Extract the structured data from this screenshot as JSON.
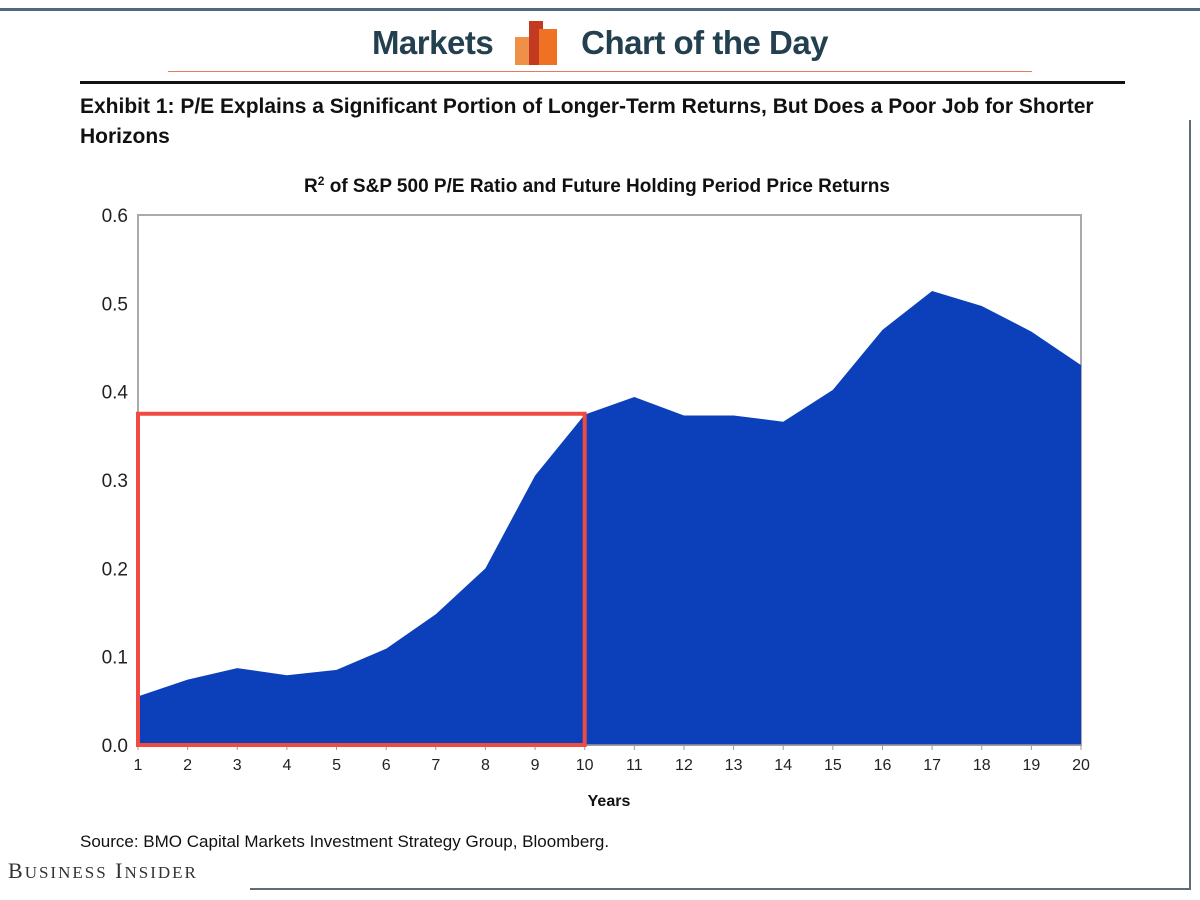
{
  "header": {
    "left": "Markets",
    "right": "Chart of the Day"
  },
  "exhibit_title": "Exhibit 1: P/E Explains a Significant Portion of Longer-Term Returns, But Does a Poor Job for Shorter Horizons",
  "source": "Source: BMO Capital Markets Investment Strategy Group, Bloomberg.",
  "brand": "Business Insider",
  "chart_data": {
    "type": "area",
    "title": "R² of S&P 500 P/E Ratio and Future Holding Period Price Returns",
    "title_main": "R",
    "title_sup": "2",
    "title_rest": " of S&P 500 P/E Ratio and Future Holding Period Price Returns",
    "xlabel": "Years",
    "ylabel": "",
    "x": [
      1,
      2,
      3,
      4,
      5,
      6,
      7,
      8,
      9,
      10,
      11,
      12,
      13,
      14,
      15,
      16,
      17,
      18,
      19,
      20
    ],
    "values": [
      0.055,
      0.074,
      0.087,
      0.079,
      0.085,
      0.109,
      0.148,
      0.2,
      0.305,
      0.374,
      0.394,
      0.373,
      0.373,
      0.366,
      0.402,
      0.47,
      0.514,
      0.497,
      0.468,
      0.43
    ],
    "xlim": [
      1,
      20
    ],
    "ylim": [
      0,
      0.6
    ],
    "yticks": [
      "0.0",
      "0.1",
      "0.2",
      "0.3",
      "0.4",
      "0.5",
      "0.6"
    ],
    "xticks": [
      "1",
      "2",
      "3",
      "4",
      "5",
      "6",
      "7",
      "8",
      "9",
      "10",
      "11",
      "12",
      "13",
      "14",
      "15",
      "16",
      "17",
      "18",
      "19",
      "20"
    ],
    "fill_color": "#0c40bb",
    "highlight": {
      "x_range": [
        1,
        10
      ],
      "y_range": [
        0,
        0.375
      ],
      "color": "#ef4b41"
    },
    "grid": false,
    "legend": "none"
  }
}
